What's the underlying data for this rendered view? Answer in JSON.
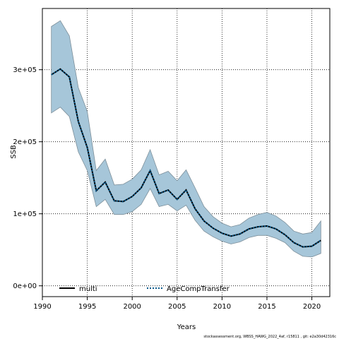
{
  "chart_data": {
    "type": "line",
    "title": "",
    "xlabel": "Years",
    "ylabel": "SSB",
    "xlim": [
      1990,
      2022
    ],
    "ylim": [
      -15000,
      385000
    ],
    "x_ticks": [
      1990,
      1995,
      2000,
      2005,
      2010,
      2015,
      2020
    ],
    "x_tick_labels": [
      "1990",
      "1995",
      "2000",
      "2005",
      "2010",
      "2015",
      "2020"
    ],
    "y_ticks": [
      0,
      100000,
      200000,
      300000
    ],
    "y_tick_labels": [
      "0e+00",
      "1e+05",
      "2e+05",
      "3e+05"
    ],
    "grid": true,
    "legend_position": "bottom-left",
    "x": [
      1991,
      1992,
      1993,
      1994,
      1995,
      1996,
      1997,
      1998,
      1999,
      2000,
      2001,
      2002,
      2003,
      2004,
      2005,
      2006,
      2007,
      2008,
      2009,
      2010,
      2011,
      2012,
      2013,
      2014,
      2015,
      2016,
      2017,
      2018,
      2019,
      2020,
      2021
    ],
    "series": [
      {
        "name": "multi",
        "style": "solid",
        "color": "#000000",
        "values": [
          293000,
          301000,
          290000,
          228000,
          192000,
          132000,
          144000,
          118000,
          117000,
          124000,
          136000,
          160000,
          128000,
          133000,
          120000,
          133000,
          107000,
          90000,
          80000,
          73000,
          69000,
          72000,
          79000,
          82000,
          83000,
          79000,
          71000,
          60000,
          54000,
          55000,
          63000
        ]
      },
      {
        "name": "AgeCompTransfer",
        "style": "dotted",
        "color": "#0a5a8c",
        "values": [
          293000,
          301000,
          290000,
          228000,
          192000,
          132000,
          144000,
          118000,
          117000,
          124000,
          136000,
          160000,
          128000,
          133000,
          120000,
          133000,
          107000,
          90000,
          80000,
          73000,
          69000,
          72000,
          79000,
          82000,
          83000,
          79000,
          71000,
          60000,
          54000,
          55000,
          63000
        ]
      }
    ],
    "confidence_band": {
      "fill": "#a6c6d9",
      "edge": "#7d8f9a",
      "upper": [
        360000,
        368000,
        347000,
        275000,
        242000,
        160000,
        176000,
        140000,
        141000,
        148000,
        161000,
        189000,
        154000,
        159000,
        146000,
        161000,
        136000,
        110000,
        96000,
        87000,
        82000,
        85000,
        94000,
        99000,
        102000,
        97000,
        88000,
        76000,
        72000,
        74000,
        90000
      ],
      "lower": [
        240000,
        248000,
        235000,
        186000,
        160000,
        110000,
        120000,
        99000,
        99000,
        103000,
        113000,
        135000,
        110000,
        113000,
        104000,
        112000,
        91000,
        76000,
        68000,
        62000,
        58000,
        61000,
        67000,
        70000,
        70000,
        66000,
        60000,
        48000,
        41000,
        40000,
        45000
      ]
    }
  },
  "legend": {
    "multi_label": "multi",
    "age_label": "AgeCompTransfer"
  },
  "footer": "stockassessment.org,  WBSS_HAWG_2022_4af,  r15811 ,  git: e2a30d42316c"
}
